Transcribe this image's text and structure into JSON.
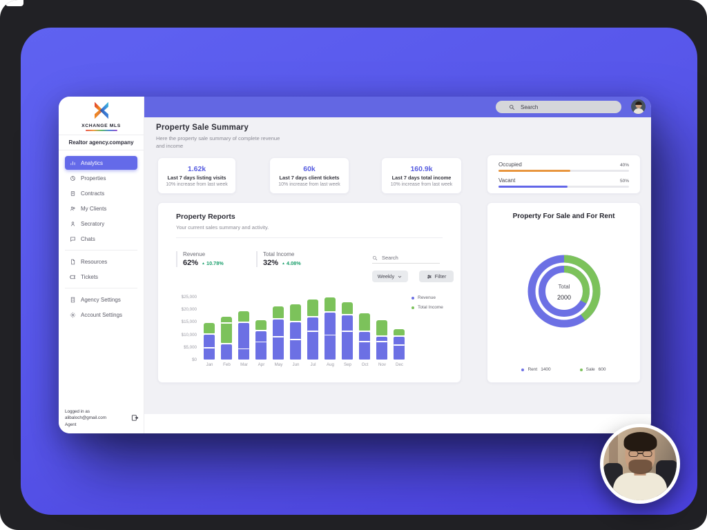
{
  "header": {
    "search_placeholder": "Search"
  },
  "sidebar": {
    "brand": "XCHANGE MLS",
    "agency": "Realtor agency.company",
    "groups": [
      [
        {
          "label": "Analytics",
          "icon": "analytics",
          "active": true
        },
        {
          "label": "Properties",
          "icon": "properties",
          "active": false
        },
        {
          "label": "Contracts",
          "icon": "contracts",
          "active": false
        },
        {
          "label": "My Clients",
          "icon": "clients",
          "active": false
        },
        {
          "label": "Secratory",
          "icon": "person",
          "active": false
        },
        {
          "label": "Chats",
          "icon": "chat",
          "active": false
        }
      ],
      [
        {
          "label": "Resources",
          "icon": "file",
          "active": false
        },
        {
          "label": "Tickets",
          "icon": "ticket",
          "active": false
        }
      ],
      [
        {
          "label": "Agency Settings",
          "icon": "building",
          "active": false
        },
        {
          "label": "Account Settings",
          "icon": "gear",
          "active": false
        }
      ]
    ],
    "logged_in": {
      "line1": "Logged in as",
      "email": "alibaloch@gmail.com",
      "role": "Agent"
    }
  },
  "main": {
    "title": "Property Sale Summary",
    "subtitle": "Here the property sale summary of complete revenue and income",
    "stats": [
      {
        "value": "1.62k",
        "label": "Last 7 days listing visits",
        "sub": "10% increase from last week"
      },
      {
        "value": "60k",
        "label": "Last 7 days client tickets",
        "sub": "10% increase from last week"
      },
      {
        "value": "160.9k",
        "label": "Last 7 days total income",
        "sub": "10% increase from last week"
      }
    ],
    "occupancy": [
      {
        "label": "Occupied",
        "pct": "40%",
        "color": "#e8963f",
        "fill_pct": 55
      },
      {
        "label": "Vacant",
        "pct": "50%",
        "color": "#6266e8",
        "fill_pct": 53
      }
    ]
  },
  "reports": {
    "title": "Property Reports",
    "subtitle": "Your current sales summary and activity.",
    "kpis": [
      {
        "label": "Revenue",
        "value": "62%",
        "delta": "10.78%"
      },
      {
        "label": "Total Income",
        "value": "32%",
        "delta": "4.08%"
      }
    ],
    "search_placeholder": "Search",
    "period_label": "Weekly",
    "filter_label": "Filter"
  },
  "donut": {
    "title": "Property For Sale and For Rent",
    "center_label": "Total",
    "center_value": "2000",
    "legend": [
      {
        "label": "Rent",
        "value": "1400",
        "color": "#6c70e4"
      },
      {
        "label": "Sale",
        "value": "600",
        "color": "#7cc25b"
      }
    ]
  },
  "colors": {
    "accent_indigo": "#6367e3",
    "bar_revenue": "#6c70e4",
    "bar_income": "#7cc25b",
    "occupied_orange": "#e8963f",
    "delta_green": "#169d69"
  },
  "chart_data": [
    {
      "type": "bar",
      "stacked": true,
      "title": "Property Reports",
      "categories": [
        "Jan",
        "Feb",
        "Mar",
        "Apr",
        "May",
        "Jun",
        "Jul",
        "Aug",
        "Sep",
        "Oct",
        "Nov",
        "Dec"
      ],
      "series": [
        {
          "name": "Revenue",
          "color": "#6c70e4",
          "values": [
            10300,
            6300,
            14800,
            11500,
            16300,
            15200,
            17000,
            19000,
            17800,
            11400,
            9400,
            9400
          ]
        },
        {
          "name": "Total Income",
          "color": "#7cc25b",
          "values": [
            4500,
            11000,
            4700,
            4500,
            5200,
            7100,
            7300,
            6000,
            5200,
            7400,
            6600,
            3100
          ]
        }
      ],
      "segment_divider_values": [
        4500,
        14300,
        4000,
        6800,
        8800,
        7800,
        11000,
        9500,
        11000,
        6900,
        6900,
        5500
      ],
      "ylim": [
        0,
        25000
      ],
      "ytick_labels": [
        "$25,000",
        "$20,000",
        "$15,000",
        "$10,000",
        "$5,000",
        "$0"
      ],
      "legend_position": "right",
      "grid": false
    },
    {
      "type": "pie",
      "title": "Property For Sale and For Rent",
      "total_label": "Total",
      "total_value": 2000,
      "slices": [
        {
          "label": "Rent",
          "value": 1400,
          "color": "#6c70e4"
        },
        {
          "label": "Sale",
          "value": 600,
          "color": "#7cc25b"
        }
      ],
      "rings": {
        "outer_green_pct": 40,
        "inner_green_pct": 33
      }
    }
  ]
}
